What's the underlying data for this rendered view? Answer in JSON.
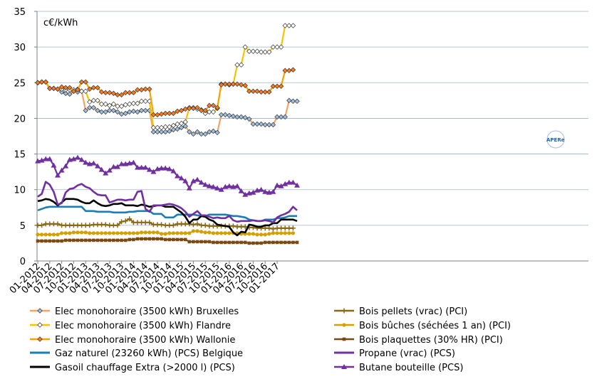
{
  "chart_data": {
    "type": "line",
    "unit_label": "c€/kWh",
    "ylim": [
      0,
      35
    ],
    "y_ticks": [
      0,
      5,
      10,
      15,
      20,
      25,
      30,
      35
    ],
    "x_tick_labels": [
      "01-2012",
      "04-2012",
      "07-2012",
      "10-2012",
      "01-2013",
      "04-2013",
      "07-2013",
      "10-2013",
      "01-2014",
      "04-2014",
      "07-2014",
      "10-2014",
      "01-2015",
      "04-2015",
      "07-2015",
      "10-2015",
      "01-2016",
      "04-2016",
      "07-2016",
      "10-2016",
      "01-2017"
    ],
    "x_start": "2012-01",
    "grid": "horizontal",
    "legend_placement": "bottom",
    "series": [
      {
        "name": "Elec monohoraire (3500 kWh) Bruxelles",
        "color": "#f4a460",
        "marker": "diamond",
        "marker_fill": "#9fbfe0",
        "values": [
          25,
          25.1,
          25.1,
          24.2,
          24.2,
          24.1,
          23.7,
          23.5,
          23.4,
          23.8,
          23.7,
          23.8,
          21.1,
          21.5,
          21.5,
          21.1,
          20.9,
          20.9,
          21.1,
          21.1,
          20.9,
          20.6,
          20.7,
          20.9,
          21,
          20.9,
          21.1,
          21.1,
          21.1,
          18.1,
          18.1,
          18.1,
          18.1,
          18.2,
          18.4,
          18.5,
          18.7,
          18.9,
          18.1,
          17.8,
          18.1,
          17.8,
          17.8,
          18.1,
          18.2,
          18,
          20.5,
          20.5,
          20.4,
          20.3,
          20.2,
          20.2,
          20.1,
          19.9,
          19.2,
          19.2,
          19.2,
          19.1,
          19.1,
          19.1,
          20.2,
          20.2,
          20.2,
          22.5,
          22.4,
          22.4
        ]
      },
      {
        "name": "Elec monohoraire (3500 kWh) Flandre",
        "color": "#f5c400",
        "marker": "diamond",
        "marker_fill": "#ffffff",
        "values": [
          25,
          25.1,
          25.1,
          24.2,
          24.2,
          24.1,
          24.1,
          24,
          24,
          24,
          24.1,
          23.8,
          23.8,
          22.3,
          22.5,
          22.5,
          22,
          22,
          21.8,
          22,
          21.7,
          21.7,
          21.9,
          22,
          22.1,
          22.1,
          22.4,
          22.4,
          22.4,
          18.7,
          18.7,
          18.7,
          18.8,
          18.8,
          19,
          19.2,
          19.3,
          19.5,
          21.5,
          21.5,
          21.3,
          21.2,
          20.7,
          20.9,
          20.9,
          21.4,
          24.8,
          24.8,
          24.7,
          24.8,
          27.5,
          27.5,
          30,
          29.4,
          29.4,
          29.4,
          29.3,
          29.3,
          29.3,
          30,
          30,
          30,
          33,
          33,
          33
        ]
      },
      {
        "name": "Elec monohoraire (3500 kWh) Wallonie",
        "color": "#f5a300",
        "marker": "diamond",
        "marker_fill": "#ff7a1a",
        "values": [
          25,
          25.1,
          25.1,
          24.2,
          24.2,
          24.1,
          24.4,
          24.3,
          24.3,
          23.8,
          24,
          25.1,
          25.1,
          24.1,
          24.3,
          24.3,
          23.7,
          23.6,
          23.6,
          23.5,
          23.3,
          23.3,
          23.6,
          23.6,
          23.6,
          24,
          24,
          24.1,
          24.1,
          20.5,
          20.5,
          20.6,
          20.7,
          20.7,
          20.7,
          21,
          21.1,
          21.3,
          21.4,
          21.4,
          21.5,
          21.1,
          21.1,
          21.8,
          21.8,
          21.5,
          24.7,
          24.8,
          24.8,
          24.8,
          24.8,
          24.7,
          24.6,
          23.8,
          23.8,
          23.8,
          23.7,
          23.7,
          23.7,
          24.5,
          24.5,
          24.5,
          26.7,
          26.7,
          26.8
        ]
      },
      {
        "name": "Gaz naturel (23260 kWh) (PCS) Belgique",
        "color": "#1c7cb5",
        "marker": "none",
        "values": [
          7.1,
          7.3,
          7.5,
          7.6,
          7.6,
          7.6,
          7.6,
          7.6,
          7.6,
          7.6,
          7.6,
          7.6,
          7,
          7,
          7,
          6.9,
          6.9,
          6.9,
          6.9,
          6.8,
          6.8,
          6.8,
          6.8,
          6.9,
          6.9,
          7,
          7,
          7,
          7,
          6.6,
          6.6,
          6.6,
          6.1,
          6.1,
          6.1,
          6.5,
          6.5,
          6.5,
          6.5,
          6.5,
          6.4,
          6.3,
          6.3,
          6.5,
          6.5,
          6.5,
          6.5,
          6.5,
          6.4,
          6.3,
          6.3,
          6.2,
          6.1,
          5.8,
          5.7,
          5.6,
          5.6,
          5.8,
          5.8,
          5.8,
          6,
          6,
          6.1,
          6.3,
          6.3,
          6.3
        ]
      },
      {
        "name": "Gasoil chauffage Extra (>2000 l) (PCS)",
        "color": "#000000",
        "marker": "none",
        "values": [
          8.4,
          8.5,
          8.7,
          8.6,
          8.3,
          7.8,
          8.2,
          8.7,
          8.7,
          8.7,
          8.6,
          8.3,
          8.1,
          8.1,
          8.5,
          8.1,
          7.8,
          7.7,
          7.8,
          8,
          8,
          8.1,
          7.8,
          7.8,
          7.8,
          7.7,
          7.9,
          7.8,
          7.6,
          7.7,
          7.8,
          7.8,
          7.6,
          7.6,
          7.6,
          7.2,
          6.8,
          6.2,
          5.3,
          5.8,
          5.8,
          6.3,
          6.2,
          5.8,
          5.6,
          5.1,
          5,
          4.9,
          4.8,
          4,
          3.6,
          4.1,
          4,
          5.1,
          5,
          4.8,
          4.8,
          5,
          5,
          5.3,
          5.3,
          5.8,
          5.8,
          5.8,
          5.8,
          5.6
        ]
      },
      {
        "name": "Bois pellets (vrac) (PCI)",
        "color": "#8b6914",
        "marker": "plus",
        "values": [
          5,
          5,
          5.2,
          5.2,
          5.2,
          5.2,
          5,
          5,
          5,
          5,
          5,
          5,
          5,
          5,
          5.1,
          5.1,
          5.1,
          5.1,
          5,
          5,
          5,
          5.5,
          5.6,
          5.9,
          5.4,
          5.4,
          5.4,
          5.4,
          5.4,
          5.1,
          5.1,
          5.1,
          5,
          5,
          5,
          5.2,
          5.2,
          5.2,
          5.2,
          5.1,
          5.2,
          5,
          5,
          4.9,
          4.9,
          4.9,
          4.9,
          4.9,
          4.9,
          4.9,
          4.8,
          4.8,
          4.8,
          4.7,
          4.7,
          4.6,
          4.6,
          4.6,
          4.6,
          4.5,
          4.6,
          4.6,
          4.6,
          4.6,
          4.6
        ]
      },
      {
        "name": "Bois bûches (séchées 1 an) (PCI)",
        "color": "#d4a000",
        "marker": "circle",
        "values": [
          3.7,
          3.7,
          3.7,
          3.7,
          3.7,
          3.7,
          3.9,
          3.9,
          3.9,
          4,
          4,
          4,
          4,
          3.9,
          3.9,
          3.9,
          3.9,
          3.9,
          3.9,
          3.9,
          3.9,
          3.9,
          3.9,
          3.9,
          3.9,
          3.9,
          4,
          4,
          4,
          4,
          4,
          3.8,
          3.8,
          3.9,
          3.9,
          3.9,
          3.9,
          3.9,
          3.9,
          4.2,
          4.2,
          4.1,
          4,
          4,
          3.9,
          3.9,
          3.9,
          3.9,
          3.9,
          3.9,
          3.9,
          3.8,
          3.8,
          3.8,
          3.8,
          3.7,
          3.7,
          3.7,
          3.8,
          3.9,
          3.9,
          3.9,
          3.9,
          3.9,
          3.9
        ]
      },
      {
        "name": "Bois plaquettes (30% HR) (PCI)",
        "color": "#7b4a12",
        "marker": "square",
        "values": [
          2.8,
          2.8,
          2.8,
          2.8,
          2.8,
          2.8,
          2.8,
          2.9,
          2.9,
          2.9,
          2.9,
          2.9,
          2.9,
          2.9,
          2.9,
          2.9,
          2.9,
          2.9,
          2.9,
          2.9,
          2.9,
          2.9,
          2.9,
          3,
          3,
          3.1,
          3.1,
          3.1,
          3.1,
          3.1,
          3.1,
          3.1,
          3,
          3,
          3,
          3,
          3,
          3,
          2.7,
          2.7,
          2.7,
          2.7,
          2.7,
          2.7,
          2.6,
          2.6,
          2.6,
          2.6,
          2.6,
          2.6,
          2.6,
          2.6,
          2.6,
          2.5,
          2.5,
          2.5,
          2.5,
          2.6,
          2.6,
          2.6,
          2.6,
          2.6,
          2.6,
          2.6,
          2.6,
          2.6
        ]
      },
      {
        "name": "Propane (vrac) (PCS)",
        "color": "#7030a0",
        "marker": "none",
        "values": [
          9,
          9.4,
          11.1,
          10.7,
          9.7,
          7.9,
          8.1,
          9.6,
          10.1,
          10.2,
          10.6,
          10.8,
          10.4,
          10.2,
          9.7,
          9.3,
          9.2,
          9.2,
          8.2,
          8.4,
          8.6,
          8.6,
          8.5,
          8.6,
          8.6,
          9.7,
          9.8,
          7.3,
          6.9,
          7.8,
          7.8,
          7.8,
          7.9,
          8,
          7.9,
          7.7,
          7.4,
          6.9,
          6.2,
          6.6,
          7,
          6.4,
          6.4,
          6.2,
          6,
          6.1,
          6,
          6,
          6.3,
          5.7,
          5.5,
          5.6,
          5.6,
          5.6,
          5.7,
          5.6,
          5.6,
          5.7,
          5.6,
          5.4,
          6.1,
          6.4,
          6.6,
          6.9,
          7.6,
          7.1
        ]
      },
      {
        "name": "Butane bouteille (PCS)",
        "color": "#7030a0",
        "marker": "triangle",
        "values": [
          14,
          14.1,
          14.3,
          14.3,
          13.4,
          12,
          12.7,
          13.3,
          14.2,
          14.3,
          14.5,
          14.2,
          13.8,
          13.6,
          13.7,
          13.3,
          12.8,
          12.3,
          12.7,
          13.2,
          13.2,
          13.6,
          13.6,
          13.7,
          13.8,
          13.1,
          13.1,
          13.1,
          12.8,
          12.5,
          12.9,
          13,
          13,
          12.9,
          12.6,
          11.9,
          11.6,
          11.2,
          10.2,
          11.2,
          11.4,
          11,
          10.7,
          10.5,
          10.4,
          10.2,
          10,
          10.4,
          10.5,
          10.4,
          10.5,
          9.8,
          9.3,
          9.5,
          9.6,
          9.9,
          10,
          9.7,
          9.6,
          9.7,
          10.6,
          10.5,
          10.8,
          11,
          11,
          10.6
        ]
      }
    ]
  },
  "logo_text": "APERe"
}
